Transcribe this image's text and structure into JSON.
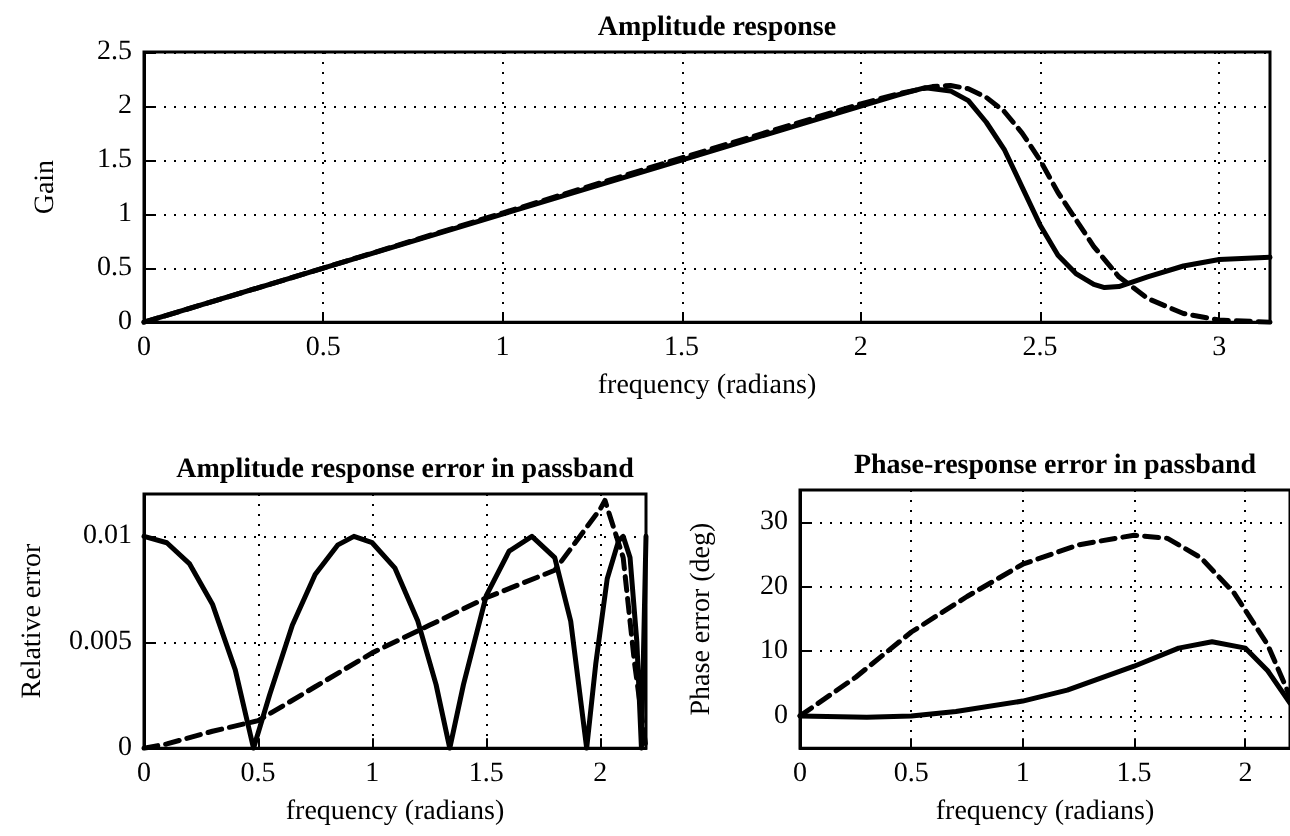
{
  "chart_data": [
    {
      "type": "line",
      "title": "Amplitude response",
      "xlabel": "frequency (radians)",
      "ylabel": "Gain",
      "xlim": [
        0,
        3.1416
      ],
      "xticks": [
        0,
        0.5,
        1,
        1.5,
        2,
        2.5,
        3
      ],
      "ylim": [
        0,
        2.5
      ],
      "yticks": [
        0,
        0.5,
        1,
        1.5,
        2,
        2.5
      ],
      "grid": true,
      "marker": "none",
      "series": [
        {
          "color": "#000000",
          "line_style": "solid",
          "x": [
            0,
            0.5,
            1,
            1.5,
            2,
            2.1,
            2.18,
            2.25,
            2.3,
            2.35,
            2.4,
            2.45,
            2.5,
            2.55,
            2.6,
            2.65,
            2.68,
            2.72,
            2.8,
            2.9,
            3.0,
            3.1416
          ],
          "values": [
            0,
            0.5,
            1,
            1.5,
            2,
            2.1,
            2.17,
            2.14,
            2.05,
            1.85,
            1.6,
            1.25,
            0.9,
            0.62,
            0.45,
            0.35,
            0.32,
            0.33,
            0.42,
            0.52,
            0.58,
            0.6
          ]
        },
        {
          "color": "#000000",
          "line_style": "dashed",
          "x": [
            0,
            0.5,
            1,
            1.5,
            2,
            2.1,
            2.2,
            2.25,
            2.3,
            2.35,
            2.4,
            2.45,
            2.5,
            2.55,
            2.6,
            2.65,
            2.72,
            2.8,
            2.9,
            3.0,
            3.1416
          ],
          "values": [
            0,
            0.5,
            1.01,
            1.52,
            2.02,
            2.11,
            2.18,
            2.19,
            2.16,
            2.08,
            1.95,
            1.75,
            1.5,
            1.2,
            0.95,
            0.7,
            0.42,
            0.22,
            0.08,
            0.02,
            0
          ]
        }
      ]
    },
    {
      "type": "line",
      "title": "Amplitude response error in passband",
      "xlabel": "frequency (radians)",
      "ylabel": "Relative error",
      "xlim": [
        0,
        2.2
      ],
      "xticks": [
        0,
        0.5,
        1,
        1.5,
        2
      ],
      "ylim": [
        0,
        0.012
      ],
      "yticks": [
        0,
        0.005,
        0.01
      ],
      "grid": true,
      "marker": "none",
      "series": [
        {
          "color": "#000000",
          "line_style": "solid",
          "x": [
            0,
            0.1,
            0.2,
            0.3,
            0.4,
            0.48,
            0.55,
            0.65,
            0.75,
            0.85,
            0.92,
            1.0,
            1.1,
            1.2,
            1.28,
            1.34,
            1.4,
            1.5,
            1.6,
            1.7,
            1.8,
            1.87,
            1.94,
            1.98,
            2.03,
            2.08,
            2.1,
            2.13,
            2.16,
            2.18,
            2.2
          ],
          "values": [
            0.01,
            0.0097,
            0.0087,
            0.0068,
            0.0037,
            0,
            0.0025,
            0.0058,
            0.0082,
            0.0096,
            0.01,
            0.0097,
            0.0085,
            0.006,
            0.003,
            0,
            0.003,
            0.0072,
            0.0093,
            0.01,
            0.009,
            0.006,
            0,
            0.004,
            0.008,
            0.0098,
            0.01,
            0.009,
            0.005,
            0,
            0.01
          ]
        },
        {
          "color": "#000000",
          "line_style": "dashed",
          "x": [
            0,
            0.1,
            0.3,
            0.5,
            0.75,
            1.0,
            1.25,
            1.5,
            1.8,
            2.0,
            2.02,
            2.1,
            2.15,
            2.2
          ],
          "values": [
            0,
            0.0002,
            0.0008,
            0.0013,
            0.0029,
            0.0045,
            0.0058,
            0.0071,
            0.0084,
            0.0113,
            0.0117,
            0.009,
            0.004,
            0
          ]
        }
      ]
    },
    {
      "type": "line",
      "title": "Phase-response error in passband",
      "xlabel": "frequency (radians)",
      "ylabel": "Phase error (deg)",
      "xlim": [
        0,
        2.2
      ],
      "xticks": [
        0,
        0.5,
        1,
        1.5,
        2
      ],
      "ylim": [
        -5,
        35
      ],
      "yticks": [
        0,
        10,
        20,
        30
      ],
      "grid": true,
      "marker": "none",
      "series": [
        {
          "color": "#000000",
          "line_style": "solid",
          "x": [
            0,
            0.3,
            0.5,
            0.7,
            1.0,
            1.2,
            1.5,
            1.7,
            1.85,
            2.0,
            2.1,
            2.2
          ],
          "values": [
            0,
            -0.2,
            0,
            0.7,
            2.3,
            4,
            7.7,
            10.5,
            11.5,
            10.5,
            7,
            2
          ]
        },
        {
          "color": "#000000",
          "line_style": "dashed",
          "x": [
            0,
            0.25,
            0.5,
            0.75,
            1.0,
            1.25,
            1.5,
            1.65,
            1.8,
            1.95,
            2.1,
            2.2
          ],
          "values": [
            0,
            6,
            13,
            18.5,
            23.5,
            26.5,
            28,
            27.5,
            24.5,
            19,
            11,
            3
          ]
        }
      ]
    }
  ]
}
